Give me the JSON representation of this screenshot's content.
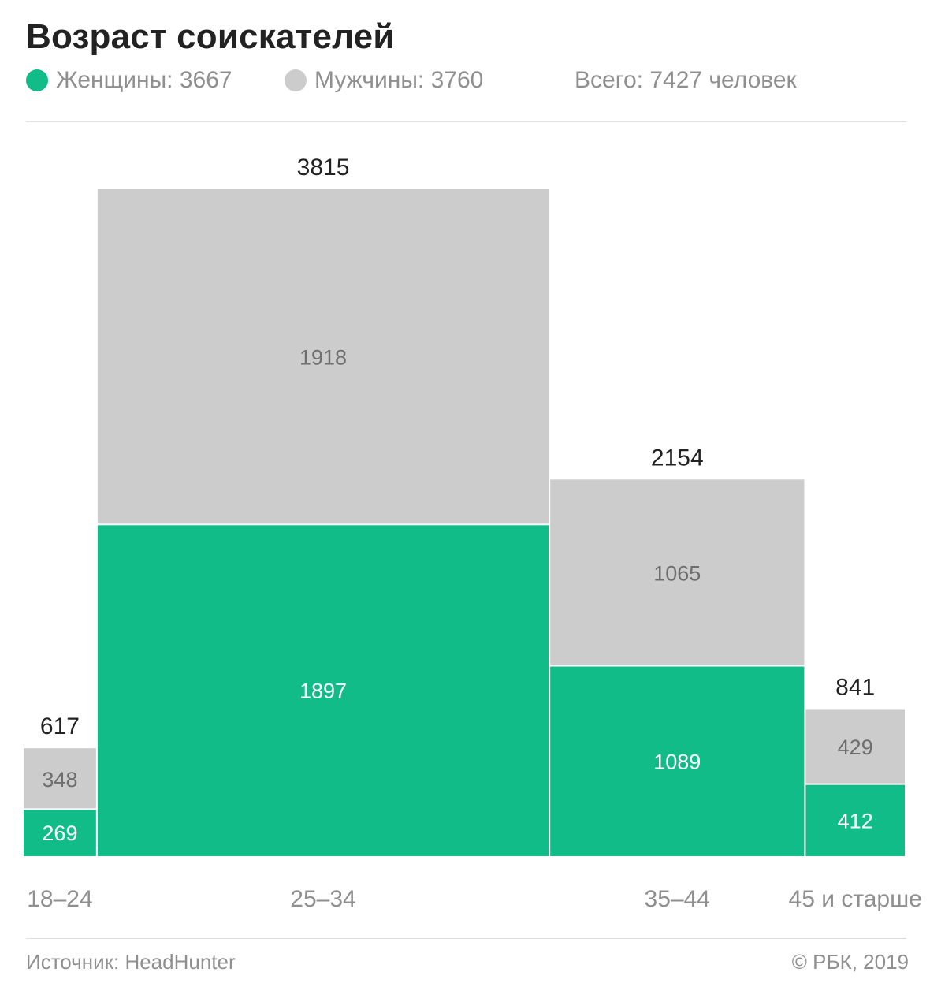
{
  "title": "Возраст соискателей",
  "legend": {
    "women": "Женщины: 3667",
    "men": "Мужчины: 3760",
    "total": "Всего: 7427 человек"
  },
  "colors": {
    "women": "#12bc89",
    "men": "#cccccc",
    "text_dark": "#222222",
    "text_muted": "#8f8f8f",
    "label_on_men": "#6e6e6e",
    "label_on_women": "#ffffff"
  },
  "chart_data": {
    "type": "bar",
    "stacked": true,
    "variable_width": true,
    "categories": [
      "18–24",
      "25–34",
      "35–44",
      "45 и старше"
    ],
    "series": [
      {
        "name": "Женщины",
        "values": [
          269,
          1897,
          1089,
          412
        ],
        "color": "#12bc89"
      },
      {
        "name": "Мужчины",
        "values": [
          348,
          1918,
          1065,
          429
        ],
        "color": "#cccccc"
      }
    ],
    "totals": [
      617,
      3815,
      2154,
      841
    ],
    "total_labels": [
      "617",
      "3815",
      "2154",
      "841"
    ],
    "segment_labels": {
      "women": [
        "269",
        "1897",
        "1089",
        "412"
      ],
      "men": [
        "348",
        "1918",
        "1065",
        "429"
      ]
    },
    "ylim": [
      0,
      3815
    ],
    "grid": false,
    "legend_position": "top-left"
  },
  "footer": {
    "source": "Источник: HeadHunter",
    "copyright": "© РБК, 2019"
  }
}
